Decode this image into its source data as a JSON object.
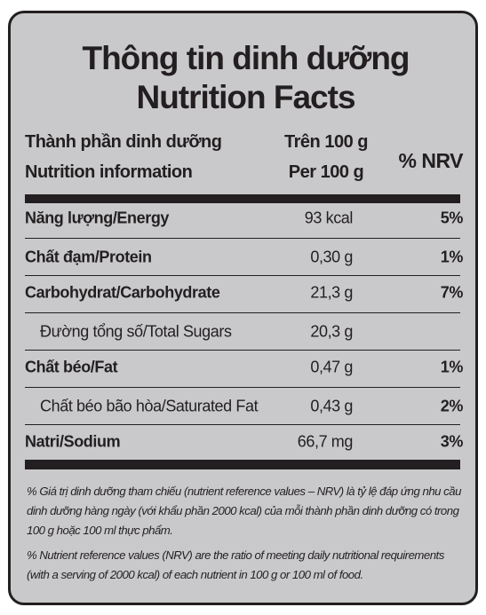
{
  "header": {
    "title_vi": "Thông tin dinh dưỡng",
    "title_en": "Nutrition Facts"
  },
  "table": {
    "columns": {
      "name": [
        "Thành phần dinh dưỡng",
        "Nutrition information"
      ],
      "amount": [
        "Trên 100 g",
        "Per 100 g"
      ],
      "nrv": "% NRV"
    },
    "rows": [
      [
        "Năng lượng/Energy",
        "93 kcal",
        "5%"
      ],
      [
        "Chất đạm/Protein",
        "0,30 g",
        "1%"
      ],
      [
        "Carbohydrat/Carbohydrate",
        "21,3 g",
        "7%"
      ],
      [
        "Đường tổng số/Total Sugars",
        "20,3 g"
      ],
      [
        "Chất béo/Fat",
        "0,47 g",
        "1%"
      ],
      [
        "Chất béo bão hòa/Saturated Fat",
        "0,43 g",
        "2%"
      ],
      [
        "Natri/Sodium",
        "66,7 mg",
        "3%"
      ]
    ]
  },
  "footnotes": [
    "% Giá trị dinh dưỡng tham chiếu (nutrient reference values – NRV) là tỷ lệ đáp ứng nhu cầu dinh dưỡng hàng ngày (với khẩu phần 2000 kcal) của mỗi thành phần dinh dưỡng có trong 100 g hoặc 100 ml thực phẩm.",
    "% Nutrient reference values (NRV) are the ratio of meeting daily nutritional requirements (with a serving of 2000 kcal) of each nutrient in 100 g or 100 ml of food."
  ]
}
